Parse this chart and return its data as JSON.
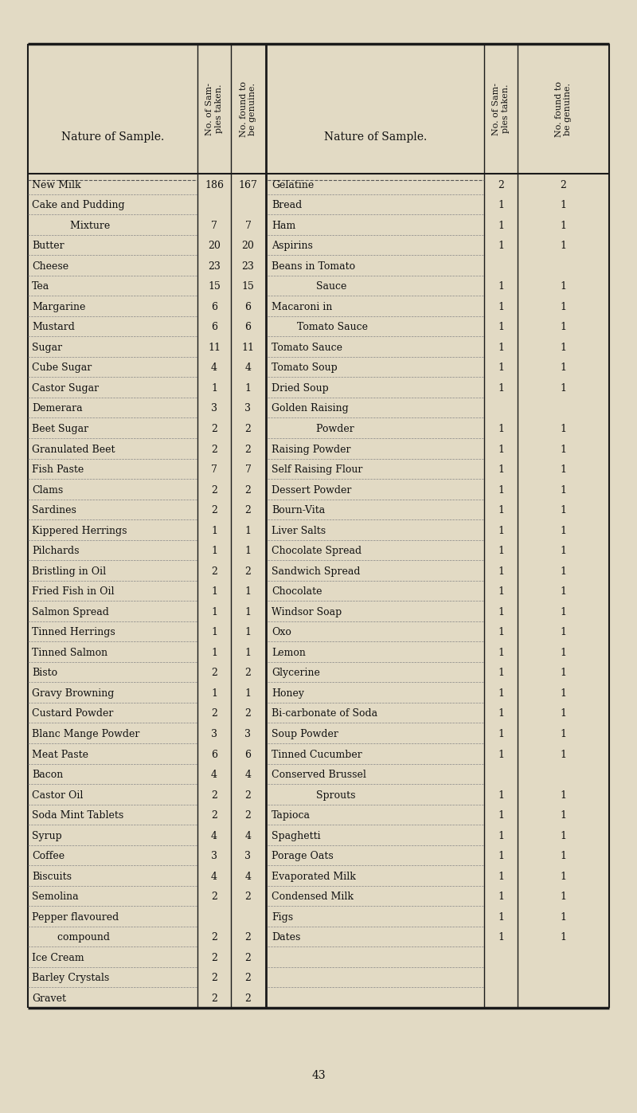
{
  "bg_color": "#e2dac4",
  "text_color": "#111111",
  "title_page_num": "43",
  "left_rows": [
    [
      "New Milk",
      "186",
      "167"
    ],
    [
      "Cake and Pudding",
      "",
      ""
    ],
    [
      "            Mixture",
      "7",
      "7"
    ],
    [
      "Butter",
      "20",
      "20"
    ],
    [
      "Cheese",
      "23",
      "23"
    ],
    [
      "Tea",
      "15",
      "15"
    ],
    [
      "Margarine",
      "6",
      "6"
    ],
    [
      "Mustard",
      "6",
      "6"
    ],
    [
      "Sugar",
      "11",
      "11"
    ],
    [
      "Cube Sugar",
      "4",
      "4"
    ],
    [
      "Castor Sugar",
      "1",
      "1"
    ],
    [
      "Demerara",
      "3",
      "3"
    ],
    [
      "Beet Sugar",
      "2",
      "2"
    ],
    [
      "Granulated Beet",
      "2",
      "2"
    ],
    [
      "Fish Paste",
      "7",
      "7"
    ],
    [
      "Clams",
      "2",
      "2"
    ],
    [
      "Sardines",
      "2",
      "2"
    ],
    [
      "Kippered Herrings",
      "1",
      "1"
    ],
    [
      "Pilchards",
      "1",
      "1"
    ],
    [
      "Bristling in Oil",
      "2",
      "2"
    ],
    [
      "Fried Fish in Oil",
      "1",
      "1"
    ],
    [
      "Salmon Spread",
      "1",
      "1"
    ],
    [
      "Tinned Herrings",
      "1",
      "1"
    ],
    [
      "Tinned Salmon",
      "1",
      "1"
    ],
    [
      "Bisto",
      "2",
      "2"
    ],
    [
      "Gravy Browning",
      "1",
      "1"
    ],
    [
      "Custard Powder",
      "2",
      "2"
    ],
    [
      "Blanc Mange Powder",
      "3",
      "3"
    ],
    [
      "Meat Paste",
      "6",
      "6"
    ],
    [
      "Bacon",
      "4",
      "4"
    ],
    [
      "Castor Oil",
      "2",
      "2"
    ],
    [
      "Soda Mint Tablets",
      "2",
      "2"
    ],
    [
      "Syrup",
      "4",
      "4"
    ],
    [
      "Coffee",
      "3",
      "3"
    ],
    [
      "Biscuits",
      "4",
      "4"
    ],
    [
      "Semolina",
      "2",
      "2"
    ],
    [
      "Pepper flavoured",
      "",
      ""
    ],
    [
      "        compound",
      "2",
      "2"
    ],
    [
      "Ice Cream",
      "2",
      "2"
    ],
    [
      "Barley Crystals",
      "2",
      "2"
    ],
    [
      "Gravet",
      "2",
      "2"
    ]
  ],
  "right_rows": [
    [
      "Gelatine",
      "2",
      "2"
    ],
    [
      "Bread",
      "1",
      "1"
    ],
    [
      "Ham",
      "1",
      "1"
    ],
    [
      "Aspirins",
      "1",
      "1"
    ],
    [
      "Beans in Tomato",
      "",
      ""
    ],
    [
      "              Sauce",
      "1",
      "1"
    ],
    [
      "Macaroni in",
      "1",
      "1"
    ],
    [
      "        Tomato Sauce",
      "1",
      "1"
    ],
    [
      "Tomato Sauce",
      "1",
      "1"
    ],
    [
      "Tomato Soup",
      "1",
      "1"
    ],
    [
      "Dried Soup",
      "1",
      "1"
    ],
    [
      "Golden Raising",
      "",
      ""
    ],
    [
      "              Powder",
      "1",
      "1"
    ],
    [
      "Raising Powder",
      "1",
      "1"
    ],
    [
      "Self Raising Flour",
      "1",
      "1"
    ],
    [
      "Dessert Powder",
      "1",
      "1"
    ],
    [
      "Bourn-Vita",
      "1",
      "1"
    ],
    [
      "Liver Salts",
      "1",
      "1"
    ],
    [
      "Chocolate Spread",
      "1",
      "1"
    ],
    [
      "Sandwich Spread",
      "1",
      "1"
    ],
    [
      "Chocolate",
      "1",
      "1"
    ],
    [
      "Windsor Soap",
      "1",
      "1"
    ],
    [
      "Oxo",
      "1",
      "1"
    ],
    [
      "Lemon",
      "1",
      "1"
    ],
    [
      "Glycerine",
      "1",
      "1"
    ],
    [
      "Honey",
      "1",
      "1"
    ],
    [
      "Bi-carbonate of Soda",
      "1",
      "1"
    ],
    [
      "Soup Powder",
      "1",
      "1"
    ],
    [
      "Tinned Cucumber",
      "1",
      "1"
    ],
    [
      "Conserved Brussel",
      "",
      ""
    ],
    [
      "              Sprouts",
      "1",
      "1"
    ],
    [
      "Tapioca",
      "1",
      "1"
    ],
    [
      "Spaghetti",
      "1",
      "1"
    ],
    [
      "Porage Oats",
      "1",
      "1"
    ],
    [
      "Evaporated Milk",
      "1",
      "1"
    ],
    [
      "Condensed Milk",
      "1",
      "1"
    ],
    [
      "Figs",
      "1",
      "1"
    ],
    [
      "Dates",
      "1",
      "1"
    ],
    [
      "",
      "",
      ""
    ],
    [
      "",
      "",
      ""
    ],
    [
      "",
      "",
      ""
    ]
  ]
}
